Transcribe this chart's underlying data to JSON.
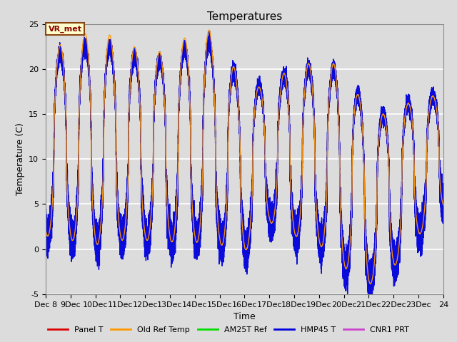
{
  "title": "Temperatures",
  "ylabel": "Temperature (C)",
  "xlabel": "Time",
  "annotation": "VR_met",
  "ylim": [
    -5,
    25
  ],
  "background_color": "#dcdcdc",
  "plot_bg_color": "#dcdcdc",
  "grid_color": "white",
  "series": [
    {
      "label": "Panel T",
      "color": "#dd0000",
      "lw": 1.0
    },
    {
      "label": "Old Ref Temp",
      "color": "#ff9900",
      "lw": 1.0
    },
    {
      "label": "AM25T Ref",
      "color": "#00dd00",
      "lw": 1.0
    },
    {
      "label": "HMP45 T",
      "color": "#0000dd",
      "lw": 1.0
    },
    {
      "label": "CNR1 PRT",
      "color": "#cc44cc",
      "lw": 1.0
    }
  ],
  "xtick_positions": [
    8,
    9,
    10,
    11,
    12,
    13,
    14,
    15,
    16,
    17,
    18,
    19,
    20,
    21,
    22,
    23,
    24
  ],
  "xtick_labels": [
    "Dec 8",
    "9Dec",
    "10Dec",
    "11Dec",
    "12Dec",
    "13Dec",
    "14Dec",
    "15Dec",
    "16Dec",
    "17Dec",
    "18Dec",
    "19Dec",
    "20Dec",
    "21Dec",
    "22Dec",
    "23Dec",
    "24"
  ],
  "ytick_vals": [
    -5,
    0,
    5,
    10,
    15,
    20,
    25
  ],
  "n_points": 48000,
  "start_day": 8,
  "end_day": 24,
  "title_fontsize": 11,
  "axis_label_fontsize": 9,
  "tick_fontsize": 8
}
